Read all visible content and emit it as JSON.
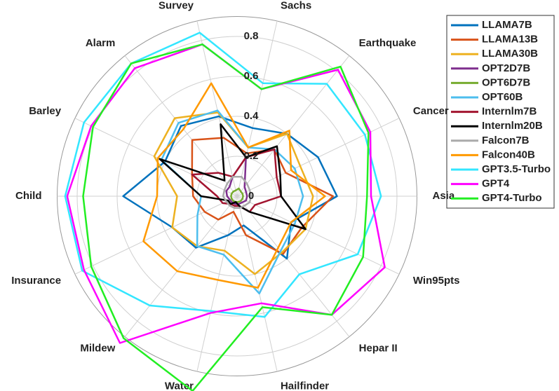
{
  "chart_data": {
    "type": "radar",
    "categories": [
      "Sachs",
      "Earthquake",
      "Cancer",
      "Asia",
      "Win95pts",
      "Hepar II",
      "Hailfinder",
      "Water",
      "Mildew",
      "Insurance",
      "Child",
      "Barley",
      "Alarm",
      "Survey"
    ],
    "rlim": [
      0,
      0.9
    ],
    "rticks": [
      0,
      0.2,
      0.4,
      0.6,
      0.8
    ],
    "grid": true,
    "legend": "right",
    "series": [
      {
        "name": "LLAMA7B",
        "color": "#0072BD",
        "values": [
          0.35,
          0.4,
          0.45,
          0.5,
          0.3,
          0.4,
          0.15,
          0.2,
          0.33,
          0.36,
          0.57,
          0.4,
          0.45,
          0.41
        ]
      },
      {
        "name": "LLAMA13B",
        "color": "#D95319",
        "values": [
          0.22,
          0.3,
          0.27,
          0.48,
          0.36,
          0.37,
          0.2,
          0.08,
          0.15,
          0.18,
          0.22,
          0.25,
          0.36,
          0.3
        ]
      },
      {
        "name": "LLAMA30B",
        "color": "#EDB120",
        "values": [
          0.25,
          0.4,
          0.35,
          0.38,
          0.38,
          0.36,
          0.4,
          0.28,
          0.32,
          0.36,
          0.3,
          0.46,
          0.5,
          0.43
        ]
      },
      {
        "name": "OPT2D7B",
        "color": "#7E2F8E",
        "values": [
          0.2,
          0.06,
          0.05,
          0.05,
          0.05,
          0.04,
          0.04,
          0.04,
          0.04,
          0.04,
          0.05,
          0.06,
          0.06,
          0.1
        ]
      },
      {
        "name": "OPT6D7B",
        "color": "#77AC30",
        "values": [
          0.04,
          0.03,
          0.03,
          0.03,
          0.03,
          0.03,
          0.03,
          0.03,
          0.03,
          0.03,
          0.03,
          0.03,
          0.03,
          0.03
        ]
      },
      {
        "name": "OPT60B",
        "color": "#4DBEEE",
        "values": [
          0.25,
          0.3,
          0.32,
          0.33,
          0.32,
          0.35,
          0.5,
          0.3,
          0.32,
          0.22,
          0.18,
          0.42,
          0.47,
          0.44
        ]
      },
      {
        "name": "Internlm7B",
        "color": "#A2142F",
        "values": [
          0.2,
          0.3,
          0.22,
          0.22,
          0.1,
          0.1,
          0.05,
          0.05,
          0.05,
          0.08,
          0.1,
          0.25,
          0.15,
          0.1
        ]
      },
      {
        "name": "Internlm20B",
        "color": "#000000",
        "values": [
          0.2,
          0.32,
          0.24,
          0.22,
          0.38,
          0.1,
          0.05,
          0.03,
          0.05,
          0.05,
          0.18,
          0.43,
          0.1,
          0.37
        ]
      },
      {
        "name": "Falcon7B",
        "color": "#AAAAAA",
        "values": [
          0.1,
          0.08,
          0.07,
          0.07,
          0.07,
          0.06,
          0.06,
          0.06,
          0.06,
          0.06,
          0.07,
          0.07,
          0.08,
          0.1
        ]
      },
      {
        "name": "Falcon40B",
        "color": "#FF9900",
        "values": [
          0.25,
          0.42,
          0.3,
          0.44,
          0.3,
          0.33,
          0.47,
          0.43,
          0.48,
          0.52,
          0.4,
          0.44,
          0.43,
          0.58
        ]
      },
      {
        "name": "GPT3.5-Turbo",
        "color": "#33E6FF",
        "values": [
          0.58,
          0.72,
          0.71,
          0.72,
          0.67,
          0.5,
          0.62,
          0.59,
          0.7,
          0.86,
          0.86,
          0.85,
          0.85,
          0.84
        ]
      },
      {
        "name": "GPT4",
        "color": "#FF00FF",
        "values": [
          0.55,
          0.81,
          0.74,
          0.67,
          0.82,
          0.76,
          0.55,
          0.6,
          0.94,
          0.85,
          0.85,
          0.81,
          0.82,
          0.78
        ]
      },
      {
        "name": "GPT4-Turbo",
        "color": "#22EE22",
        "values": [
          0.55,
          0.83,
          0.73,
          0.65,
          0.7,
          0.76,
          0.57,
          1.0,
          0.91,
          0.81,
          0.77,
          0.8,
          0.85,
          0.78
        ]
      }
    ]
  }
}
